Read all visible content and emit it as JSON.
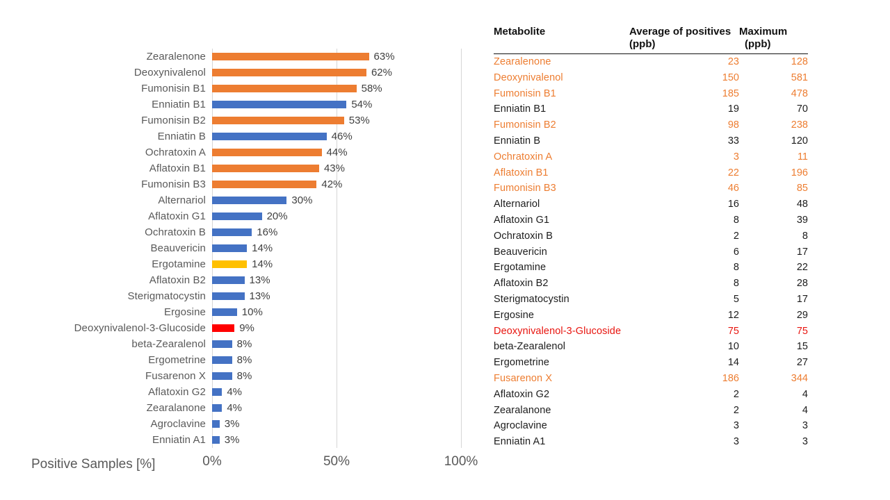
{
  "colors": {
    "orange": "#ED7D31",
    "blue": "#4472C4",
    "yellow": "#FFC000",
    "red": "#FF0000",
    "grid": "#D6D6D6",
    "axis_text": "#595959",
    "table_orange": "#ED7D31",
    "table_red": "#E8150F",
    "table_black": "#1C1C1C"
  },
  "chart_data": [
    {
      "type": "bar",
      "orientation": "horizontal",
      "title": "",
      "xlabel": "Positive Samples [%]",
      "ylabel": "",
      "xlim": [
        0,
        100
      ],
      "x_ticks": [
        "0%",
        "50%",
        "100%"
      ],
      "grid": true,
      "value_label_suffix": "%",
      "categories": [
        "Zearalenone",
        "Deoxynivalenol",
        "Fumonisin B1",
        "Enniatin B1",
        "Fumonisin B2",
        "Enniatin B",
        "Ochratoxin A",
        "Aflatoxin B1",
        "Fumonisin B3",
        "Alternariol",
        "Aflatoxin G1",
        "Ochratoxin B",
        "Beauvericin",
        "Ergotamine",
        "Aflatoxin B2",
        "Sterigmatocystin",
        "Ergosine",
        "Deoxynivalenol-3-Glucoside",
        "beta-Zearalenol",
        "Ergometrine",
        "Fusarenon X",
        "Aflatoxin G2",
        "Zearalanone",
        "Agroclavine",
        "Enniatin A1"
      ],
      "values": [
        63,
        62,
        58,
        54,
        53,
        46,
        44,
        43,
        42,
        30,
        20,
        16,
        14,
        14,
        13,
        13,
        10,
        9,
        8,
        8,
        8,
        4,
        4,
        3,
        3
      ],
      "bar_colors": [
        "orange",
        "orange",
        "orange",
        "blue",
        "orange",
        "blue",
        "orange",
        "orange",
        "orange",
        "blue",
        "blue",
        "blue",
        "blue",
        "yellow",
        "blue",
        "blue",
        "blue",
        "red",
        "blue",
        "blue",
        "blue",
        "blue",
        "blue",
        "blue",
        "blue"
      ]
    },
    {
      "type": "table",
      "columns": [
        "Metabolite",
        "Average of positives (ppb)",
        "Maximum (ppb)"
      ],
      "header_lines": {
        "col1": "Metabolite",
        "col2a": "Average of positives",
        "col2b": "(ppb)",
        "col3a": "Maximum",
        "col3b": "(ppb)"
      },
      "rows": [
        {
          "name": "Zearalenone",
          "avg": 23,
          "max": 128,
          "color": "orange"
        },
        {
          "name": "Deoxynivalenol",
          "avg": 150,
          "max": 581,
          "color": "orange"
        },
        {
          "name": "Fumonisin B1",
          "avg": 185,
          "max": 478,
          "color": "orange"
        },
        {
          "name": "Enniatin B1",
          "avg": 19,
          "max": 70,
          "color": "black"
        },
        {
          "name": "Fumonisin B2",
          "avg": 98,
          "max": 238,
          "color": "orange"
        },
        {
          "name": "Enniatin B",
          "avg": 33,
          "max": 120,
          "color": "black"
        },
        {
          "name": "Ochratoxin A",
          "avg": 3,
          "max": 11,
          "color": "orange"
        },
        {
          "name": "Aflatoxin B1",
          "avg": 22,
          "max": 196,
          "color": "orange"
        },
        {
          "name": "Fumonisin B3",
          "avg": 46,
          "max": 85,
          "color": "orange"
        },
        {
          "name": "Alternariol",
          "avg": 16,
          "max": 48,
          "color": "black"
        },
        {
          "name": "Aflatoxin G1",
          "avg": 8,
          "max": 39,
          "color": "black"
        },
        {
          "name": "Ochratoxin B",
          "avg": 2,
          "max": 8,
          "color": "black"
        },
        {
          "name": "Beauvericin",
          "avg": 6,
          "max": 17,
          "color": "black"
        },
        {
          "name": "Ergotamine",
          "avg": 8,
          "max": 22,
          "color": "black"
        },
        {
          "name": "Aflatoxin B2",
          "avg": 8,
          "max": 28,
          "color": "black"
        },
        {
          "name": "Sterigmatocystin",
          "avg": 5,
          "max": 17,
          "color": "black"
        },
        {
          "name": "Ergosine",
          "avg": 12,
          "max": 29,
          "color": "black"
        },
        {
          "name": "Deoxynivalenol-3-Glucoside",
          "avg": 75,
          "max": 75,
          "color": "red"
        },
        {
          "name": "beta-Zearalenol",
          "avg": 10,
          "max": 15,
          "color": "black"
        },
        {
          "name": "Ergometrine",
          "avg": 14,
          "max": 27,
          "color": "black"
        },
        {
          "name": "Fusarenon X",
          "avg": 186,
          "max": 344,
          "color": "orange"
        },
        {
          "name": "Aflatoxin G2",
          "avg": 2,
          "max": 4,
          "color": "black"
        },
        {
          "name": "Zearalanone",
          "avg": 2,
          "max": 4,
          "color": "black"
        },
        {
          "name": "Agroclavine",
          "avg": 3,
          "max": 3,
          "color": "black"
        },
        {
          "name": "Enniatin A1",
          "avg": 3,
          "max": 3,
          "color": "black"
        }
      ]
    }
  ]
}
